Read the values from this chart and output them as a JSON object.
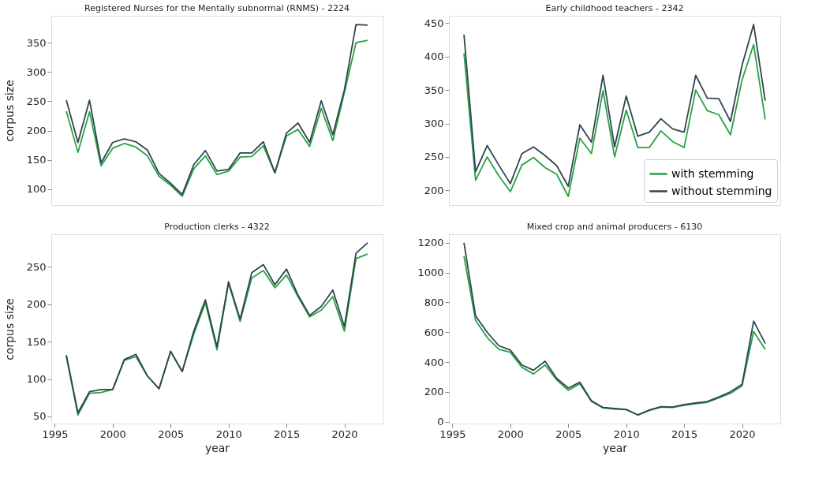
{
  "chart_data": [
    {
      "type": "line",
      "title": "Registered Nurses for the Mentally subnormal (RNMS) - 2224",
      "ylabel": "corpus size",
      "x": [
        1996,
        1997,
        1998,
        1999,
        2000,
        2001,
        2002,
        2003,
        2004,
        2005,
        2006,
        2007,
        2008,
        2009,
        2010,
        2011,
        2012,
        2013,
        2014,
        2015,
        2016,
        2017,
        2018,
        2019,
        2020,
        2021,
        2022
      ],
      "xlim": [
        1994.7,
        2023.3
      ],
      "ylim": [
        73,
        396
      ],
      "yticks": [
        100,
        150,
        200,
        250,
        300,
        350
      ],
      "tick_labels": "y",
      "legend": false,
      "grid": false,
      "series": [
        {
          "color": "#27a243",
          "values": [
            233,
            163,
            232,
            140,
            170,
            178,
            172,
            157,
            122,
            107,
            88,
            135,
            157,
            125,
            131,
            155,
            156,
            174,
            128,
            191,
            202,
            173,
            238,
            183,
            265,
            350,
            354
          ]
        },
        {
          "color": "#2f4550",
          "values": [
            252,
            180,
            252,
            145,
            180,
            186,
            181,
            167,
            127,
            110,
            91,
            142,
            166,
            131,
            134,
            162,
            162,
            181,
            128,
            196,
            213,
            180,
            251,
            193,
            270,
            381,
            380
          ]
        }
      ]
    },
    {
      "type": "line",
      "title": "Early childhood teachers - 2342",
      "x": [
        1996,
        1997,
        1998,
        1999,
        2000,
        2001,
        2002,
        2003,
        2004,
        2005,
        2006,
        2007,
        2008,
        2009,
        2010,
        2011,
        2012,
        2013,
        2014,
        2015,
        2016,
        2017,
        2018,
        2019,
        2020,
        2021,
        2022
      ],
      "xlim": [
        1994.7,
        2023.3
      ],
      "ylim": [
        178,
        461
      ],
      "yticks": [
        200,
        250,
        300,
        350,
        400,
        450
      ],
      "tick_labels": "y",
      "legend": "bottom right",
      "grid": false,
      "series": [
        {
          "name": "with stemming",
          "color": "#27a243",
          "values": [
            405,
            215,
            250,
            222,
            198,
            238,
            249,
            234,
            224,
            191,
            278,
            255,
            349,
            250,
            320,
            264,
            264,
            289,
            273,
            264,
            350,
            319,
            313,
            283,
            365,
            418,
            306
          ]
        },
        {
          "name": "without stemming",
          "color": "#2f4550",
          "values": [
            433,
            228,
            267,
            238,
            210,
            255,
            265,
            252,
            237,
            206,
            298,
            272,
            372,
            265,
            341,
            281,
            287,
            307,
            292,
            287,
            372,
            338,
            337,
            303,
            387,
            448,
            334
          ]
        }
      ]
    },
    {
      "type": "line",
      "title": "Production clerks - 4322",
      "xlabel": "year",
      "ylabel": "corpus size",
      "x": [
        1996,
        1997,
        1998,
        1999,
        2000,
        2001,
        2002,
        2003,
        2004,
        2005,
        2006,
        2007,
        2008,
        2009,
        2010,
        2011,
        2012,
        2013,
        2014,
        2015,
        2016,
        2017,
        2018,
        2019,
        2020,
        2021,
        2022
      ],
      "xlim": [
        1994.7,
        2023.3
      ],
      "xticks": [
        1995,
        2000,
        2005,
        2010,
        2015,
        2020
      ],
      "ylim": [
        40.5,
        293.5
      ],
      "yticks": [
        50,
        100,
        150,
        200,
        250
      ],
      "legend": false,
      "grid": false,
      "series": [
        {
          "color": "#27a243",
          "values": [
            130,
            52,
            81,
            82,
            86,
            125,
            130,
            104,
            87,
            137,
            110,
            160,
            202,
            139,
            228,
            177,
            235,
            245,
            222,
            239,
            210,
            183,
            192,
            210,
            164,
            261,
            267
          ]
        },
        {
          "color": "#2f4550",
          "values": [
            132,
            55,
            83,
            86,
            86,
            126,
            133,
            104,
            87,
            137,
            110,
            164,
            206,
            143,
            230,
            180,
            242,
            253,
            226,
            247,
            212,
            185,
            197,
            219,
            170,
            268,
            282
          ]
        }
      ]
    },
    {
      "type": "line",
      "title": "Mixed crop and animal producers - 6130",
      "xlabel": "year",
      "x": [
        1996,
        1997,
        1998,
        1999,
        2000,
        2001,
        2002,
        2003,
        2004,
        2005,
        2006,
        2007,
        2008,
        2009,
        2010,
        2011,
        2012,
        2013,
        2014,
        2015,
        2016,
        2017,
        2018,
        2019,
        2020,
        2021,
        2022
      ],
      "xlim": [
        1994.7,
        2023.3
      ],
      "xticks": [
        1995,
        2000,
        2005,
        2010,
        2015,
        2020
      ],
      "ylim": [
        -13,
        1258
      ],
      "yticks": [
        0,
        200,
        400,
        600,
        800,
        1000,
        1200
      ],
      "legend": false,
      "grid": false,
      "series": [
        {
          "color": "#27a243",
          "values": [
            1110,
            680,
            565,
            485,
            465,
            365,
            320,
            380,
            280,
            210,
            255,
            135,
            92,
            85,
            80,
            45,
            75,
            98,
            95,
            110,
            120,
            130,
            160,
            190,
            240,
            605,
            485
          ]
        },
        {
          "color": "#2f4550",
          "values": [
            1200,
            710,
            600,
            510,
            480,
            380,
            345,
            405,
            290,
            225,
            265,
            140,
            95,
            88,
            82,
            45,
            78,
            100,
            98,
            115,
            125,
            135,
            165,
            200,
            250,
            675,
            525
          ]
        }
      ]
    }
  ]
}
